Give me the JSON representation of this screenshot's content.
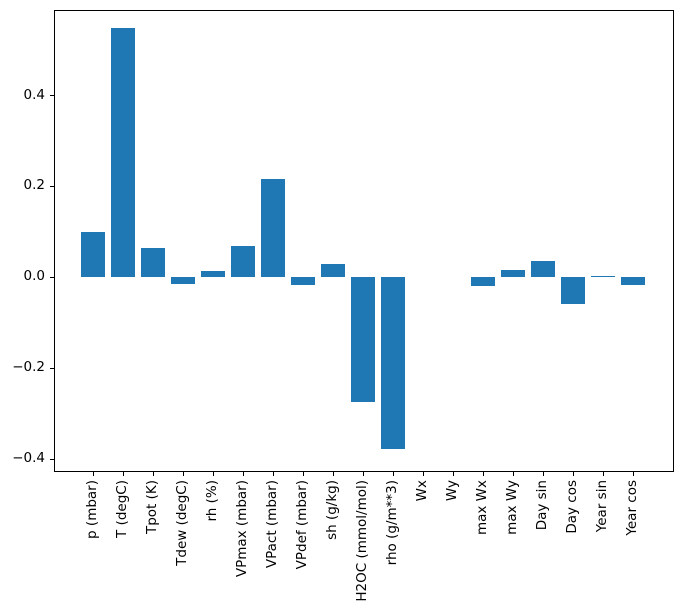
{
  "figure": {
    "background_color": "#ffffff",
    "text_color": "#000000"
  },
  "chart_data": {
    "type": "bar",
    "title": "",
    "xlabel": "",
    "ylabel": "",
    "bar_color": "#1f77b4",
    "grid": false,
    "legend": false,
    "ylim": [
      -0.427,
      0.585
    ],
    "yticks": {
      "values": [
        0.4,
        0.2,
        0.0,
        -0.2,
        -0.4
      ],
      "labels": [
        "0.4",
        "0.2",
        "0.0",
        "−0.2",
        "−0.4"
      ]
    },
    "categories": [
      "p (mbar)",
      "T (degC)",
      "Tpot (K)",
      "Tdew (degC)",
      "rh (%)",
      "VPmax (mbar)",
      "VPact (mbar)",
      "VPdef (mbar)",
      "sh (g/kg)",
      "H2OC (mmol/mol)",
      "rho (g/m**3)",
      "Wx",
      "Wy",
      "max Wx",
      "max Wy",
      "Day sin",
      "Day cos",
      "Year sin",
      "Year cos"
    ],
    "values": [
      0.099,
      0.547,
      0.063,
      -0.015,
      0.012,
      0.067,
      0.215,
      -0.018,
      0.029,
      -0.275,
      -0.378,
      0.0,
      0.0,
      -0.021,
      0.015,
      0.035,
      -0.06,
      0.003,
      -0.018
    ],
    "x_tick_label_rotation_deg": 90
  }
}
